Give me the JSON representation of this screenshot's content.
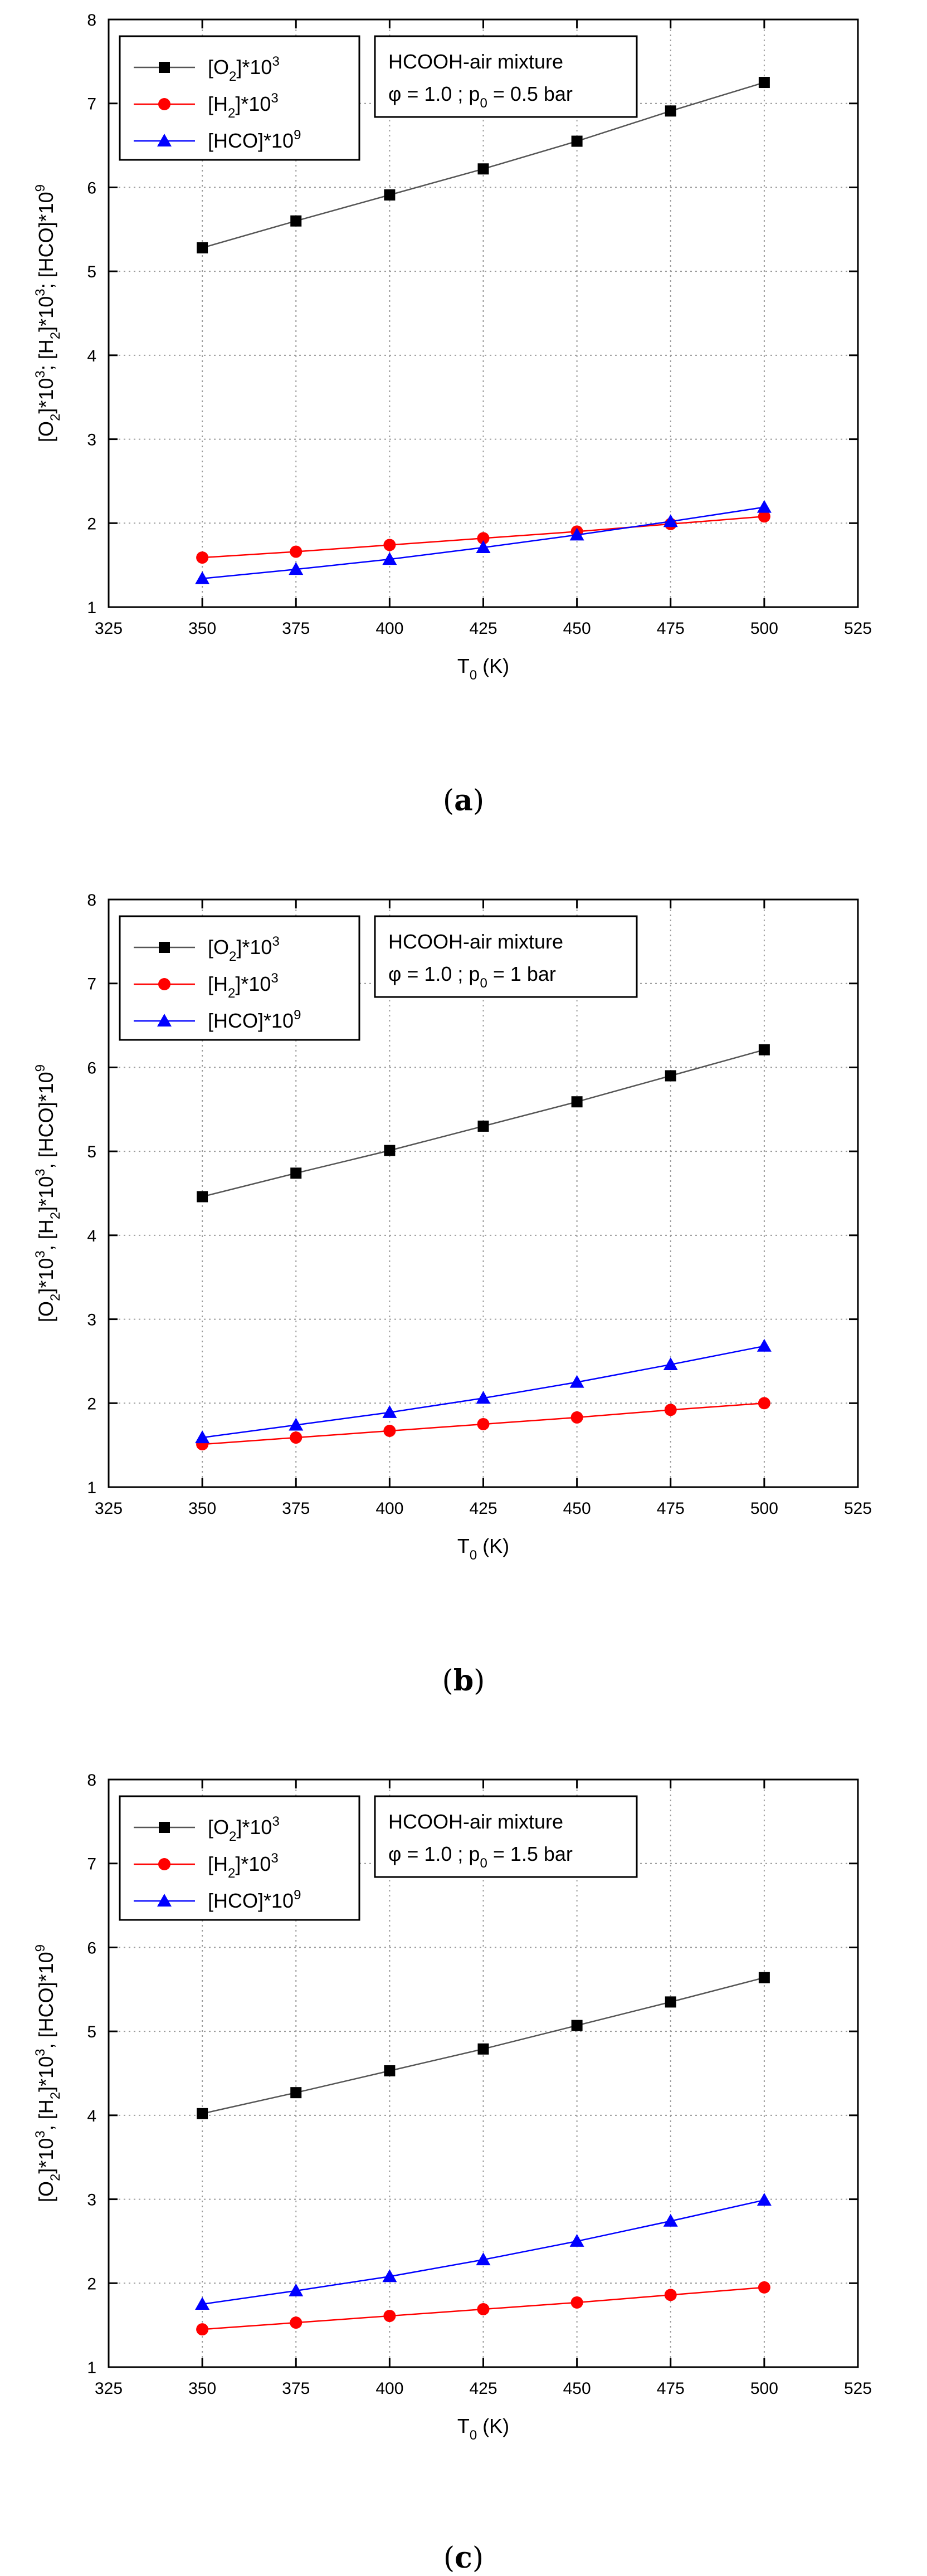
{
  "figure": {
    "series_styles": [
      {
        "marker": "square",
        "line_color": "#555555",
        "marker_color": "#000000"
      },
      {
        "marker": "circle",
        "line_color": "#ff0000",
        "marker_color": "#ff0000"
      },
      {
        "marker": "triangle",
        "line_color": "#0000ff",
        "marker_color": "#0000ff"
      }
    ]
  },
  "chart_data": [
    {
      "type": "line",
      "caption": "a",
      "xlabel": "T",
      "xlabel_sub": "0",
      "xlabel_unit": " (K)",
      "ylabel_parts": [
        "[O",
        "2",
        "]*10",
        "3",
        ";  [H",
        "2",
        "]*10",
        "3",
        ";  [HCO]*10",
        "9"
      ],
      "xlim": [
        325,
        525
      ],
      "ylim": [
        1,
        8
      ],
      "xticks": [
        325,
        350,
        375,
        400,
        425,
        450,
        475,
        500,
        525
      ],
      "yticks": [
        1,
        2,
        3,
        4,
        5,
        6,
        7,
        8
      ],
      "grid": true,
      "x": [
        350,
        375,
        400,
        425,
        450,
        475,
        500
      ],
      "series": [
        {
          "name": "[O2]*10^3",
          "legend_parts": [
            "[O",
            "2",
            "]*10",
            "3"
          ],
          "values": [
            5.28,
            5.6,
            5.91,
            6.22,
            6.55,
            6.91,
            7.25
          ]
        },
        {
          "name": "[H2]*10^3",
          "legend_parts": [
            "[H",
            "2",
            "]*10",
            "3"
          ],
          "values": [
            1.59,
            1.66,
            1.74,
            1.82,
            1.9,
            1.99,
            2.08
          ]
        },
        {
          "name": "[HCO]*10^9",
          "legend_parts": [
            "[HCO]*10",
            "9"
          ],
          "values": [
            1.34,
            1.45,
            1.57,
            1.71,
            1.86,
            2.02,
            2.19
          ]
        }
      ],
      "note_line1": "HCOOH-air mixture",
      "note_line2_parts": [
        "φ = 1.0 ; p",
        "0",
        " = 0.5 bar"
      ]
    },
    {
      "type": "line",
      "caption": "b",
      "xlabel": "T",
      "xlabel_sub": "0",
      "xlabel_unit": " (K)",
      "ylabel_parts": [
        "[O",
        "2",
        "]*10",
        "3",
        ",  [H",
        "2",
        "]*10",
        "3",
        ",  [HCO]*10",
        "9"
      ],
      "xlim": [
        325,
        525
      ],
      "ylim": [
        1,
        8
      ],
      "xticks": [
        325,
        350,
        375,
        400,
        425,
        450,
        475,
        500,
        525
      ],
      "yticks": [
        1,
        2,
        3,
        4,
        5,
        6,
        7,
        8
      ],
      "grid": true,
      "x": [
        350,
        375,
        400,
        425,
        450,
        475,
        500
      ],
      "series": [
        {
          "name": "[O2]*10^3",
          "legend_parts": [
            "[O",
            "2",
            "]*10",
            "3"
          ],
          "values": [
            4.46,
            4.74,
            5.01,
            5.3,
            5.59,
            5.9,
            6.21
          ]
        },
        {
          "name": "[H2]*10^3",
          "legend_parts": [
            "[H",
            "2",
            "]*10",
            "3"
          ],
          "values": [
            1.51,
            1.59,
            1.67,
            1.75,
            1.83,
            1.92,
            2.0
          ]
        },
        {
          "name": "[HCO]*10^9",
          "legend_parts": [
            "[HCO]*10",
            "9"
          ],
          "values": [
            1.59,
            1.74,
            1.89,
            2.06,
            2.25,
            2.46,
            2.68
          ]
        }
      ],
      "note_line1": "HCOOH-air mixture",
      "note_line2_parts": [
        "φ = 1.0 ; p",
        "0",
        " = 1 bar"
      ]
    },
    {
      "type": "line",
      "caption": "c",
      "xlabel": "T",
      "xlabel_sub": "0",
      "xlabel_unit": " (K)",
      "ylabel_parts": [
        "[O",
        "2",
        "]*10",
        "3",
        ",  [H",
        "2",
        "]*10",
        "3",
        ",  [HCO]*10",
        "9"
      ],
      "xlim": [
        325,
        525
      ],
      "ylim": [
        1,
        8
      ],
      "xticks": [
        325,
        350,
        375,
        400,
        425,
        450,
        475,
        500,
        525
      ],
      "yticks": [
        1,
        2,
        3,
        4,
        5,
        6,
        7,
        8
      ],
      "grid": true,
      "x": [
        350,
        375,
        400,
        425,
        450,
        475,
        500
      ],
      "series": [
        {
          "name": "[O2]*10^3",
          "legend_parts": [
            "[O",
            "2",
            "]*10",
            "3"
          ],
          "values": [
            4.02,
            4.27,
            4.53,
            4.79,
            5.07,
            5.35,
            5.64
          ]
        },
        {
          "name": "[H2]*10^3",
          "legend_parts": [
            "[H",
            "2",
            "]*10",
            "3"
          ],
          "values": [
            1.45,
            1.53,
            1.61,
            1.69,
            1.77,
            1.86,
            1.95
          ]
        },
        {
          "name": "[HCO]*10^9",
          "legend_parts": [
            "[HCO]*10",
            "9"
          ],
          "values": [
            1.75,
            1.91,
            2.08,
            2.28,
            2.5,
            2.74,
            2.99
          ]
        }
      ],
      "note_line1": "HCOOH-air mixture",
      "note_line2_parts": [
        "φ = 1.0 ; p",
        "0",
        " = 1.5 bar"
      ]
    }
  ]
}
